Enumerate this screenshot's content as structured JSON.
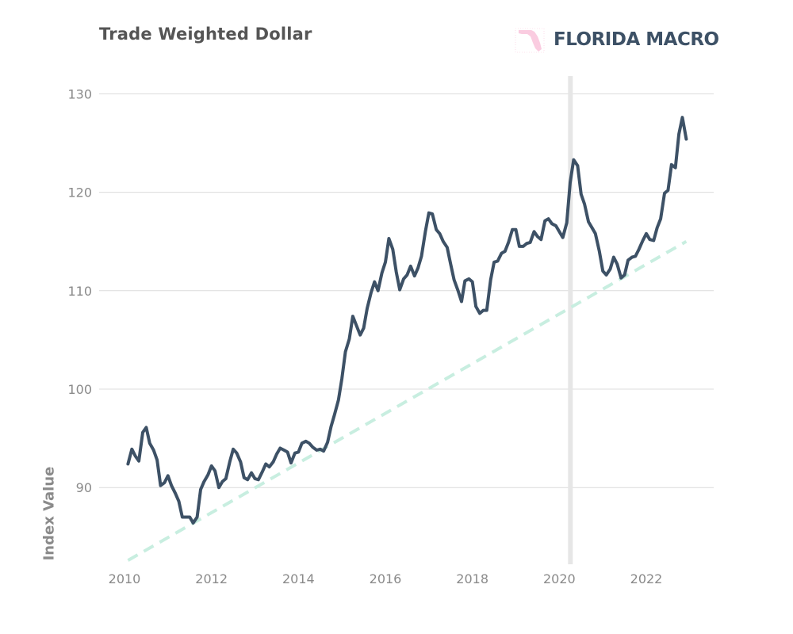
{
  "header": {
    "title": "Trade Weighted Dollar"
  },
  "brand": {
    "name": "FLORIDA MACRO",
    "mark_color": "#f5a3c7",
    "text_color": "#3d5166"
  },
  "chart_data": {
    "type": "line",
    "title": "Trade Weighted Dollar",
    "xlabel": "",
    "ylabel": "Index Value",
    "xlim": [
      2009.6,
      2023.5
    ],
    "ylim": [
      82,
      132
    ],
    "x_ticks": [
      2010,
      2012,
      2014,
      2016,
      2018,
      2020,
      2022
    ],
    "y_ticks": [
      90,
      100,
      110,
      120,
      130
    ],
    "grid": "horizontal",
    "recession_band": {
      "start": 2020.2,
      "end": 2020.3,
      "color": "#e6e6e6"
    },
    "series": [
      {
        "style": "solid",
        "color": "#3d5166",
        "x": [
          2010.08,
          2010.17,
          2010.25,
          2010.33,
          2010.42,
          2010.5,
          2010.58,
          2010.67,
          2010.75,
          2010.83,
          2010.92,
          2011.0,
          2011.08,
          2011.17,
          2011.25,
          2011.33,
          2011.42,
          2011.5,
          2011.58,
          2011.67,
          2011.75,
          2011.83,
          2011.92,
          2012.0,
          2012.08,
          2012.17,
          2012.25,
          2012.33,
          2012.42,
          2012.5,
          2012.58,
          2012.67,
          2012.75,
          2012.83,
          2012.92,
          2013.0,
          2013.08,
          2013.17,
          2013.25,
          2013.33,
          2013.42,
          2013.5,
          2013.58,
          2013.67,
          2013.75,
          2013.83,
          2013.92,
          2014.0,
          2014.08,
          2014.17,
          2014.25,
          2014.33,
          2014.42,
          2014.5,
          2014.58,
          2014.67,
          2014.75,
          2014.83,
          2014.92,
          2015.0,
          2015.08,
          2015.17,
          2015.25,
          2015.33,
          2015.42,
          2015.5,
          2015.58,
          2015.67,
          2015.75,
          2015.83,
          2015.92,
          2016.0,
          2016.08,
          2016.17,
          2016.25,
          2016.33,
          2016.42,
          2016.5,
          2016.58,
          2016.67,
          2016.75,
          2016.83,
          2016.92,
          2017.0,
          2017.08,
          2017.17,
          2017.25,
          2017.33,
          2017.42,
          2017.5,
          2017.58,
          2017.67,
          2017.75,
          2017.83,
          2017.92,
          2018.0,
          2018.08,
          2018.17,
          2018.25,
          2018.33,
          2018.42,
          2018.5,
          2018.58,
          2018.67,
          2018.75,
          2018.83,
          2018.92,
          2019.0,
          2019.08,
          2019.17,
          2019.25,
          2019.33,
          2019.42,
          2019.5,
          2019.58,
          2019.67,
          2019.75,
          2019.83,
          2019.92,
          2020.0,
          2020.08,
          2020.17,
          2020.25,
          2020.33,
          2020.42,
          2020.5,
          2020.58,
          2020.67,
          2020.75,
          2020.83,
          2020.92,
          2021.0,
          2021.08,
          2021.17,
          2021.25,
          2021.33,
          2021.42,
          2021.5,
          2021.58,
          2021.67,
          2021.75,
          2021.83,
          2021.92,
          2022.0,
          2022.08,
          2022.17,
          2022.25,
          2022.33,
          2022.42,
          2022.5,
          2022.58,
          2022.67,
          2022.75,
          2022.83,
          2022.92
        ],
        "values": [
          92.4,
          93.9,
          93.2,
          92.7,
          95.6,
          96.1,
          94.5,
          93.8,
          92.8,
          90.2,
          90.5,
          91.2,
          90.2,
          89.4,
          88.6,
          87.0,
          87.0,
          87.0,
          86.4,
          87.0,
          89.8,
          90.6,
          91.3,
          92.2,
          91.7,
          90.0,
          90.6,
          90.9,
          92.6,
          93.9,
          93.5,
          92.6,
          91.0,
          90.8,
          91.5,
          90.9,
          90.8,
          91.6,
          92.4,
          92.1,
          92.6,
          93.4,
          94.0,
          93.8,
          93.6,
          92.5,
          93.5,
          93.6,
          94.5,
          94.7,
          94.5,
          94.1,
          93.8,
          93.9,
          93.7,
          94.6,
          96.2,
          97.4,
          98.9,
          101.1,
          103.8,
          105.1,
          107.4,
          106.5,
          105.5,
          106.2,
          108.2,
          109.8,
          110.9,
          110.0,
          111.8,
          112.9,
          115.3,
          114.2,
          111.9,
          110.1,
          111.2,
          111.6,
          112.5,
          111.5,
          112.3,
          113.5,
          116.0,
          117.9,
          117.8,
          116.2,
          115.8,
          115.0,
          114.4,
          112.7,
          111.1,
          110.0,
          108.9,
          111.0,
          111.2,
          110.9,
          108.4,
          107.7,
          108.0,
          108.0,
          111.1,
          112.9,
          113.0,
          113.8,
          114.0,
          114.9,
          116.2,
          116.2,
          114.5,
          114.5,
          114.8,
          114.9,
          116.0,
          115.5,
          115.2,
          117.1,
          117.3,
          116.8,
          116.6,
          116.0,
          115.4,
          116.9,
          121.0,
          123.3,
          122.7,
          119.8,
          118.8,
          117.0,
          116.4,
          115.8,
          114.0,
          112.0,
          111.6,
          112.2,
          113.4,
          112.7,
          111.3,
          111.6,
          113.1,
          113.4,
          113.5,
          114.2,
          115.1,
          115.8,
          115.2,
          115.1,
          116.4,
          117.3,
          119.9,
          120.2,
          122.8,
          122.5,
          125.9,
          127.6,
          125.4
        ]
      },
      {
        "style": "dashed",
        "color": "#c8eee0",
        "x": [
          2010.08,
          2022.92
        ],
        "values": [
          82.6,
          115.0
        ]
      }
    ]
  }
}
